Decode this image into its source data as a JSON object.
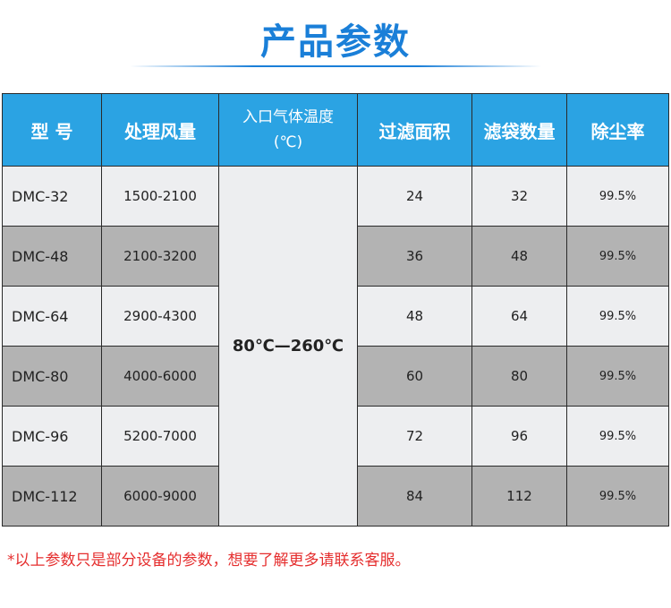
{
  "title": "产品参数",
  "headers": [
    "型 号",
    "处理风量",
    "入口气体温度",
    "(℃)",
    "过滤面积",
    "滤袋数量",
    "除尘率"
  ],
  "temperature": "80℃—260℃",
  "rows": [
    {
      "model": "DMC-32",
      "airflow": "1500-2100",
      "area": "24",
      "bags": "32",
      "rate": "99.5%"
    },
    {
      "model": "DMC-48",
      "airflow": "2100-3200",
      "area": "36",
      "bags": "48",
      "rate": "99.5%"
    },
    {
      "model": "DMC-64",
      "airflow": "2900-4300",
      "area": "48",
      "bags": "64",
      "rate": "99.5%"
    },
    {
      "model": "DMC-80",
      "airflow": "4000-6000",
      "area": "60",
      "bags": "80",
      "rate": "99.5%"
    },
    {
      "model": "DMC-96",
      "airflow": "5200-7000",
      "area": "72",
      "bags": "96",
      "rate": "99.5%"
    },
    {
      "model": "DMC-112",
      "airflow": "6000-9000",
      "area": "84",
      "bags": "112",
      "rate": "99.5%"
    }
  ],
  "note": "*以上参数只是部分设备的参数，想要了解更多请联系客服。"
}
